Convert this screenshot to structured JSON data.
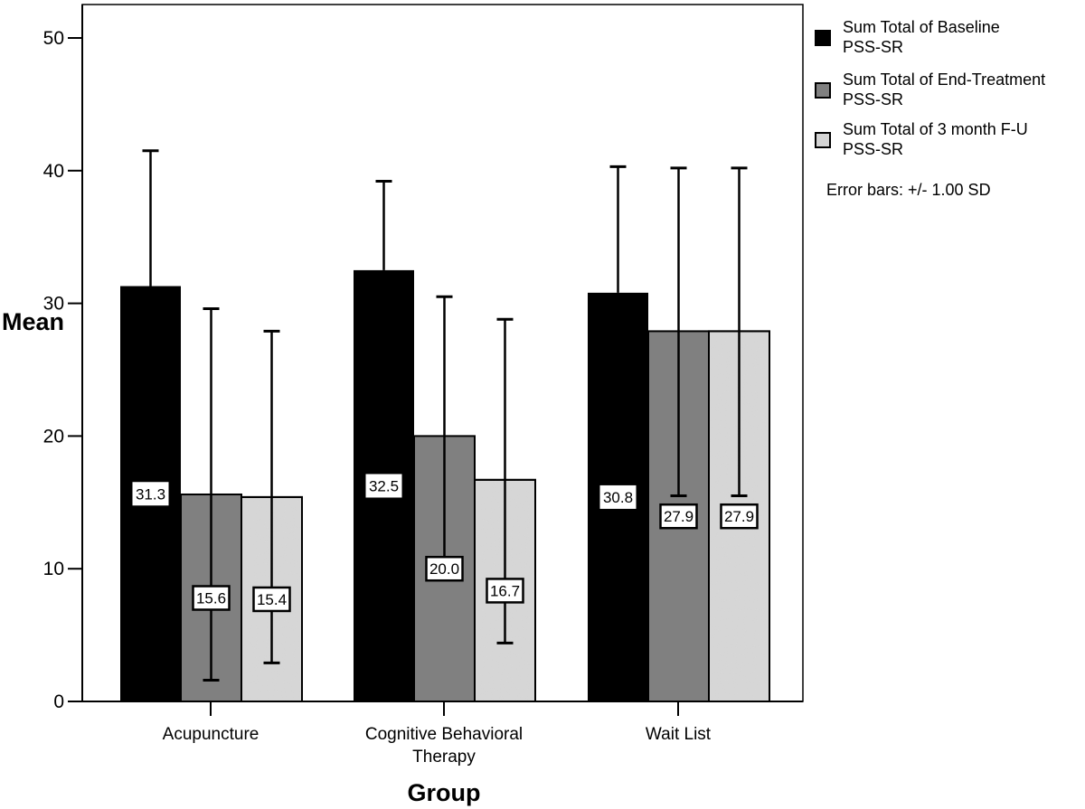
{
  "chart_data": {
    "type": "bar",
    "title": "",
    "xlabel": "Group",
    "ylabel": "Mean",
    "ylim": [
      0,
      50
    ],
    "yticks": [
      0,
      10,
      20,
      30,
      40,
      50
    ],
    "grid": false,
    "legend_position": "right",
    "categories": [
      "Acupuncture",
      "Cognitive Behavioral Therapy",
      "Wait List"
    ],
    "category_lines": [
      [
        "Acupuncture"
      ],
      [
        "Cognitive Behavioral",
        "Therapy"
      ],
      [
        "Wait List"
      ]
    ],
    "series": [
      {
        "name": "Sum Total of Baseline PSS-SR",
        "legend_lines": [
          "Sum Total of Baseline",
          "PSS-SR"
        ],
        "color": "#000000",
        "values": [
          31.3,
          32.5,
          30.8
        ],
        "labels": [
          "31.3",
          "32.5",
          "30.8"
        ],
        "error_upper": [
          41.5,
          39.2,
          40.3
        ],
        "error_lower": [
          null,
          null,
          null
        ]
      },
      {
        "name": "Sum Total of End-Treatment PSS-SR",
        "legend_lines": [
          "Sum Total of End-Treatment",
          "PSS-SR"
        ],
        "color": "#808080",
        "values": [
          15.6,
          20.0,
          27.9
        ],
        "labels": [
          "15.6",
          "20.0",
          "27.9"
        ],
        "error_upper": [
          29.6,
          30.5,
          40.2
        ],
        "error_lower": [
          1.6,
          9.5,
          15.5
        ]
      },
      {
        "name": "Sum Total of 3 month F-U PSS-SR",
        "legend_lines": [
          "Sum Total of 3 month F-U",
          "PSS-SR"
        ],
        "color": "#d4d4d4",
        "values": [
          15.4,
          16.7,
          27.9
        ],
        "labels": [
          "15.4",
          "16.7",
          "27.9"
        ],
        "error_upper": [
          27.9,
          28.8,
          40.2
        ],
        "error_lower": [
          2.9,
          4.4,
          15.5
        ]
      }
    ],
    "annotation": "Error bars: +/- 1.00 SD"
  }
}
